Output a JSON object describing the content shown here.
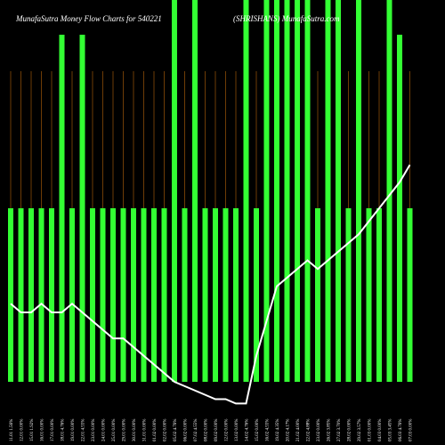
{
  "chart_data": {
    "type": "bar",
    "title": "MunafaSutra  Money Flow  Charts for 540221",
    "subtitle": "(SHRISHANS) MunafaSutra.com",
    "categories": [
      "11.01 1.56%",
      "12.01 0.00%",
      "15.01 1.92%",
      "16.01 0.00%",
      "17.01 0.00%",
      "18.01 4.76%",
      "19.01 0.00%",
      "22.01 4.55%",
      "23.01 0.00%",
      "24.01 0.00%",
      "25.01 0.00%",
      "29.01 0.00%",
      "30.01 0.00%",
      "31.01 0.00%",
      "01.02 0.00%",
      "02.02 0.00%",
      "05.02 4.76%",
      "06.02 0.00%",
      "07.02 4.55%",
      "08.02 0.00%",
      "09.02 0.00%",
      "12.02 0.00%",
      "13.02 0.00%",
      "14.02 4.76%",
      "15.02 0.00%",
      "16.02 4.55%",
      "19.02 4.35%",
      "20.02 4.17%",
      "21.02 4.00%",
      "22.02 4.88%",
      "23.02 0.00%",
      "26.02 3.85%",
      "27.02 3.70%",
      "28.02 0.00%",
      "29.02 3.57%",
      "01.03 0.00%",
      "04.03 0.00%",
      "05.03 3.45%",
      "06.03 4.76%",
      "07.03 0.00%"
    ],
    "series": [
      {
        "type": "bar",
        "color": "#33ff33",
        "values": [
          200,
          200,
          200,
          200,
          200,
          400,
          200,
          400,
          200,
          200,
          200,
          200,
          200,
          200,
          200,
          200,
          440,
          200,
          440,
          200,
          200,
          200,
          200,
          440,
          200,
          440,
          440,
          440,
          440,
          440,
          200,
          440,
          440,
          200,
          440,
          200,
          200,
          440,
          400,
          200
        ]
      },
      {
        "type": "line",
        "color": "#ffffff",
        "values": [
          90,
          80,
          80,
          90,
          80,
          80,
          90,
          80,
          70,
          60,
          50,
          50,
          40,
          30,
          20,
          10,
          0,
          -5,
          -10,
          -15,
          -20,
          -20,
          -25,
          -25,
          30,
          70,
          110,
          120,
          130,
          140,
          130,
          140,
          150,
          160,
          170,
          185,
          200,
          215,
          230,
          250
        ]
      }
    ],
    "ylim": [
      -40,
      440
    ],
    "guide_color": "#b8660b"
  }
}
